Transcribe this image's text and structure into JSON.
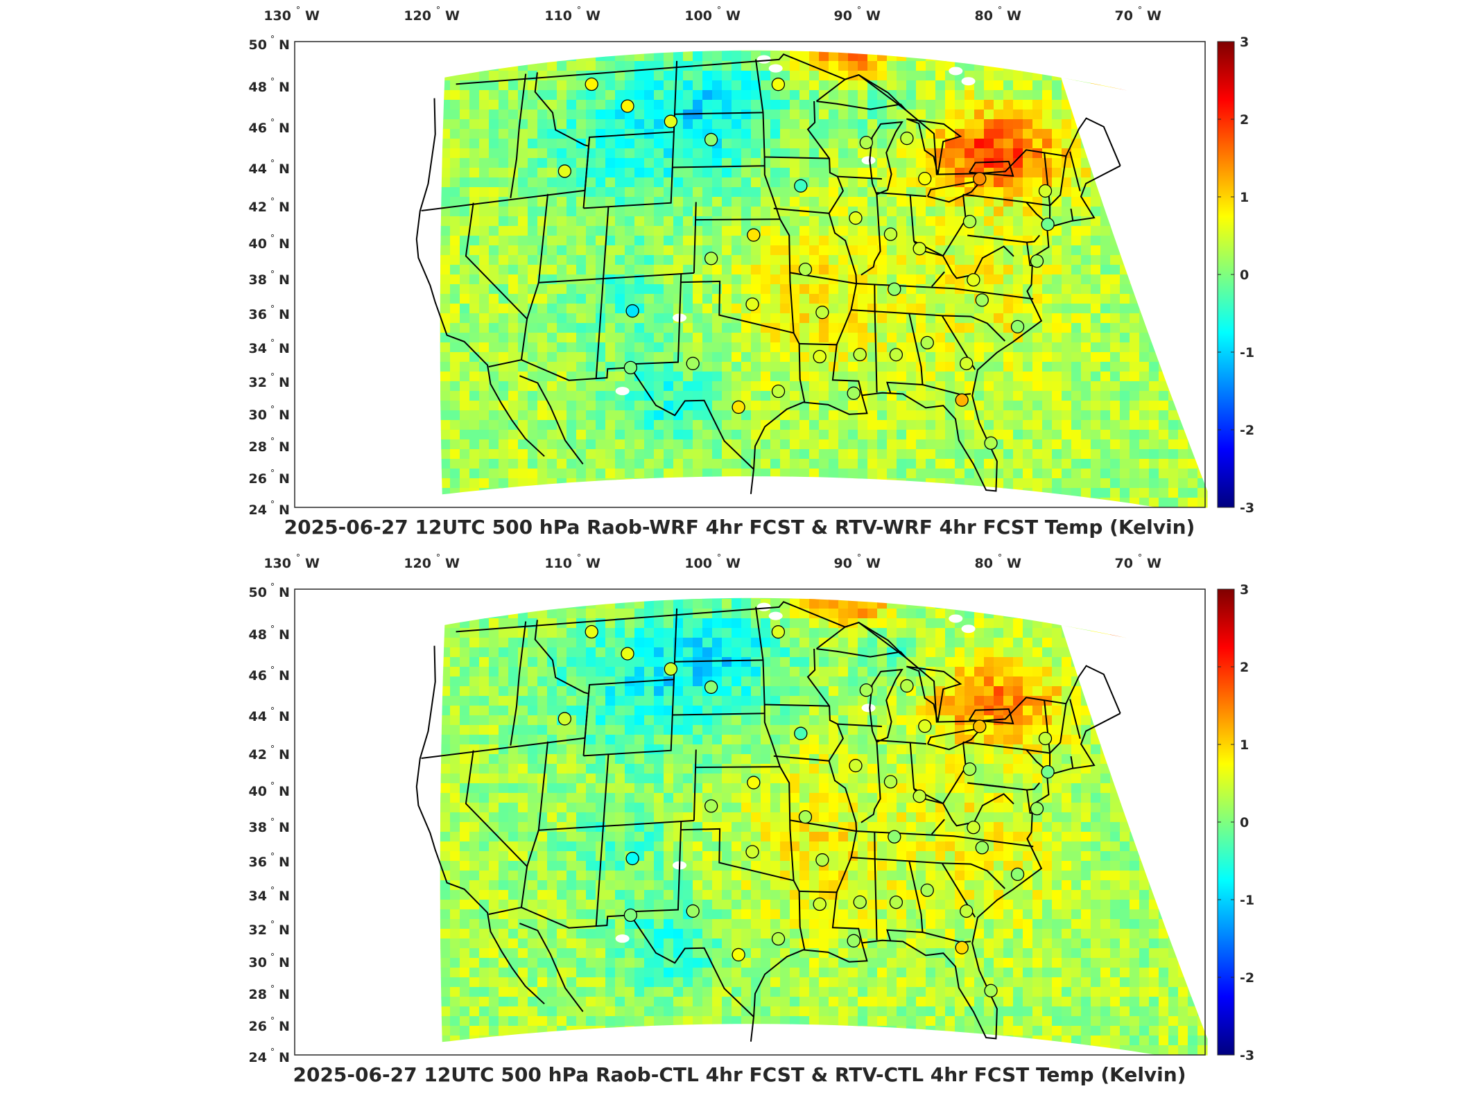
{
  "panels": [
    {
      "title": "2025-06-27 12UTC 500 hPa Raob-WRF 4hr FCST & RTV-WRF 4hr FCST Temp (Kelvin)"
    },
    {
      "title": "2025-06-27 12UTC 500 hPa Raob-CTL 4hr FCST & RTV-CTL 4hr FCST Temp (Kelvin)"
    }
  ],
  "lon_labels": [
    "130",
    "120",
    "110",
    "100",
    "90",
    "80",
    "70"
  ],
  "lon_suffix": "W",
  "lat_labels": [
    "50",
    "48",
    "46",
    "44",
    "42",
    "40",
    "38",
    "36",
    "34",
    "32",
    "30",
    "28",
    "26",
    "24"
  ],
  "lat_suffix": "N",
  "degree_symbol": "°",
  "colorbar": {
    "ticks": [
      "3",
      "2",
      "1",
      "0",
      "-1",
      "-2",
      "-3"
    ],
    "colormap": "jet",
    "colors": [
      "#00007f",
      "#0000ff",
      "#007fff",
      "#00ffff",
      "#7fff7f",
      "#ffff00",
      "#ff7f00",
      "#ff0000",
      "#7f0000"
    ]
  },
  "map": {
    "projection": "lambert-conformal",
    "extent_lon": [
      -130,
      -65
    ],
    "extent_lat": [
      24,
      50
    ],
    "field": "temperature difference (K)",
    "station_marker": "circle"
  }
}
